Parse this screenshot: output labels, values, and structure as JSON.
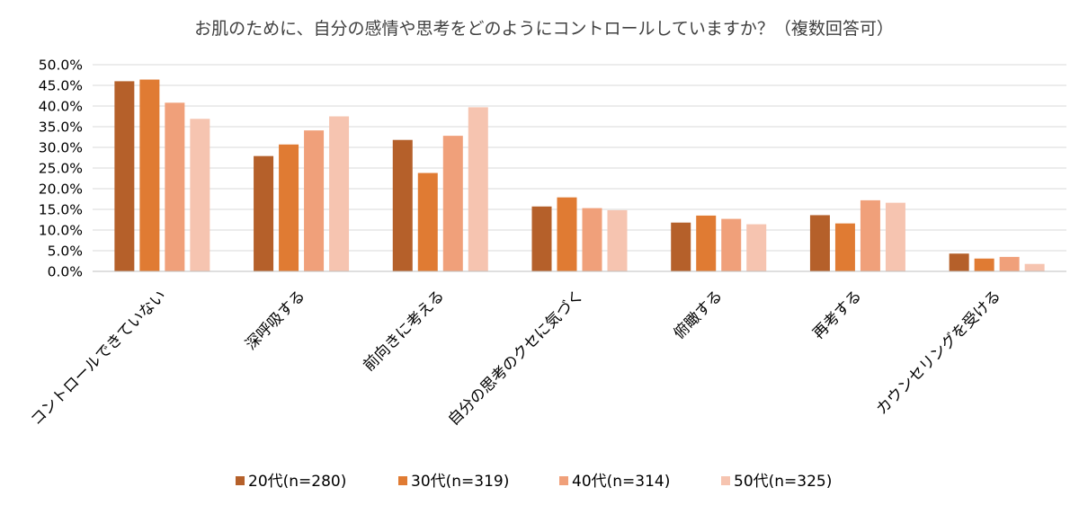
{
  "chart_data": {
    "type": "bar",
    "title": "お肌のために、自分の感情や思考をどのようにコントロールしていますか？（複数回答可）",
    "xlabel": "",
    "ylabel": "",
    "ylim": [
      0,
      50
    ],
    "y_ticks": [
      "0.0%",
      "5.0%",
      "10.0%",
      "15.0%",
      "20.0%",
      "25.0%",
      "30.0%",
      "35.0%",
      "40.0%",
      "45.0%",
      "50.0%"
    ],
    "grid": true,
    "legend_position": "bottom",
    "categories": [
      "コントロールできていない",
      "深呼吸する",
      "前向きに考える",
      "自分の思考のクセに気づく",
      "俯瞰する",
      "再考する",
      "カウンセリングを受ける"
    ],
    "series": [
      {
        "name": "20代(n=280)",
        "color": "#b5602a",
        "values": [
          46.0,
          27.9,
          31.8,
          15.7,
          11.8,
          13.6,
          4.3
        ]
      },
      {
        "name": "30代(n=319)",
        "color": "#e07b33",
        "values": [
          46.4,
          30.7,
          23.8,
          17.9,
          13.5,
          11.6,
          3.1
        ]
      },
      {
        "name": "40代(n=314)",
        "color": "#f0a07a",
        "values": [
          40.8,
          34.1,
          32.8,
          15.3,
          12.7,
          17.2,
          3.5
        ]
      },
      {
        "name": "50代(n=325)",
        "color": "#f6c4b0",
        "values": [
          36.9,
          37.5,
          39.7,
          14.8,
          11.4,
          16.6,
          1.8
        ]
      }
    ]
  }
}
